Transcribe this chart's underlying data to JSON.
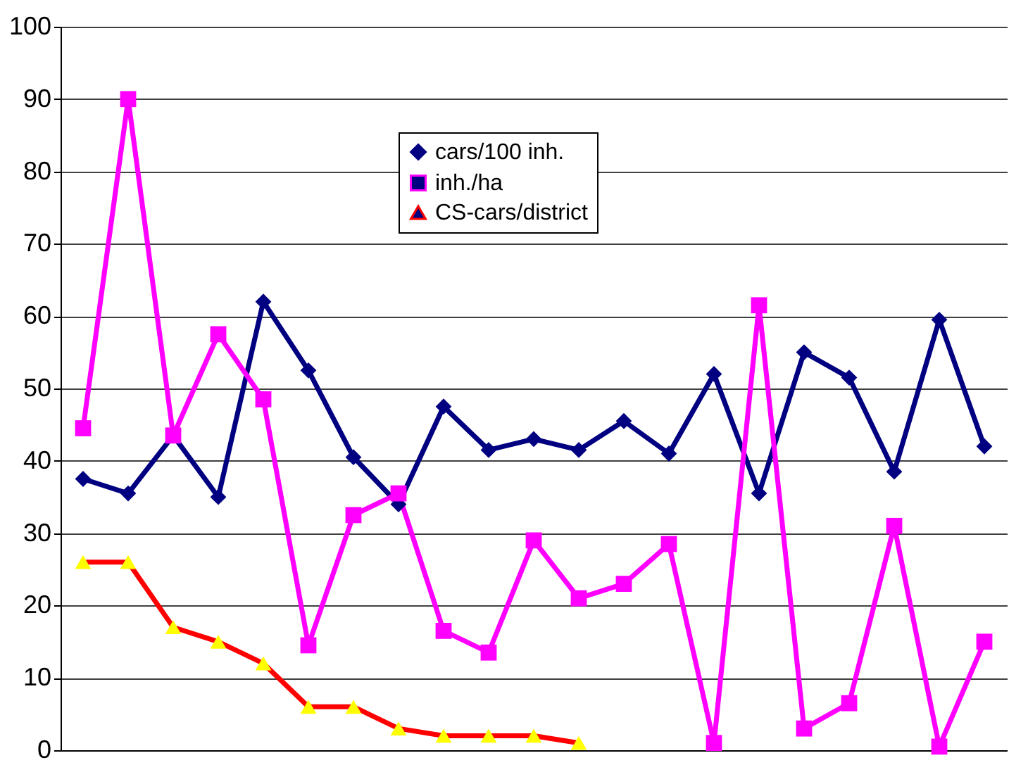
{
  "chart_data": {
    "type": "line",
    "categories": [
      null,
      null,
      null,
      null,
      null,
      null,
      null,
      null,
      null,
      null,
      null,
      null,
      null,
      null,
      null,
      null,
      null,
      null,
      null,
      null,
      null
    ],
    "series": [
      {
        "name": "cars/100 inh.",
        "color": "#000080",
        "marker": "diamond",
        "values": [
          37.5,
          35.5,
          43.5,
          35,
          62,
          52.5,
          40.5,
          34,
          47.5,
          41.5,
          43,
          41.5,
          45.5,
          41,
          52,
          35.5,
          55,
          51.5,
          38.5,
          59.5,
          42
        ]
      },
      {
        "name": "inh./ha",
        "color": "#ff00ff",
        "marker": "square",
        "values": [
          44.5,
          90,
          43.5,
          57.5,
          48.5,
          14.5,
          32.5,
          35.5,
          16.5,
          13.5,
          29,
          21,
          23,
          28.5,
          1,
          61.5,
          3,
          6.5,
          31,
          0.5,
          15
        ]
      },
      {
        "name": "CS-cars/district",
        "color": "#ff0000",
        "marker": "triangle",
        "values": [
          26,
          26,
          17,
          15,
          12,
          6,
          6,
          3,
          2,
          2,
          2,
          1,
          null,
          null,
          null,
          null,
          null,
          null,
          null,
          null,
          null
        ]
      }
    ],
    "ylim": [
      0,
      100
    ],
    "yticks": [
      0,
      10,
      20,
      30,
      40,
      50,
      60,
      70,
      80,
      90,
      100
    ],
    "grid": "y",
    "legend": "top",
    "tick_labels": "y",
    "line_style": "solid"
  }
}
